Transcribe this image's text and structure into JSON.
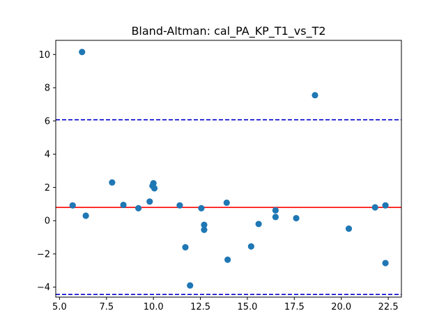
{
  "chart_data": {
    "type": "scatter",
    "title": "Bland-Altman: cal_PA_KP_T1_vs_T2",
    "xlabel": "",
    "ylabel": "",
    "xlim": [
      4.8,
      23.2
    ],
    "ylim": [
      -4.6,
      10.85
    ],
    "x_ticks": [
      5.0,
      7.5,
      10.0,
      12.5,
      15.0,
      17.5,
      20.0,
      22.5
    ],
    "x_tick_labels": [
      "5.0",
      "7.5",
      "10.0",
      "12.5",
      "15.0",
      "17.5",
      "20.0",
      "22.5"
    ],
    "y_ticks": [
      -4,
      -2,
      0,
      2,
      4,
      6,
      8,
      10
    ],
    "y_tick_labels": [
      "−4",
      "−2",
      "0",
      "2",
      "4",
      "6",
      "8",
      "10"
    ],
    "grid": false,
    "points": [
      {
        "x": 5.7,
        "y": 0.92
      },
      {
        "x": 6.2,
        "y": 10.15
      },
      {
        "x": 6.4,
        "y": 0.3
      },
      {
        "x": 7.8,
        "y": 2.3
      },
      {
        "x": 8.4,
        "y": 0.95
      },
      {
        "x": 9.2,
        "y": 0.75
      },
      {
        "x": 9.8,
        "y": 1.15
      },
      {
        "x": 9.95,
        "y": 2.1
      },
      {
        "x": 10.0,
        "y": 2.25
      },
      {
        "x": 10.05,
        "y": 1.95
      },
      {
        "x": 11.4,
        "y": 0.92
      },
      {
        "x": 11.7,
        "y": -1.6
      },
      {
        "x": 11.95,
        "y": -3.9
      },
      {
        "x": 12.55,
        "y": 0.75
      },
      {
        "x": 12.7,
        "y": -0.25
      },
      {
        "x": 12.7,
        "y": -0.55
      },
      {
        "x": 13.9,
        "y": 1.08
      },
      {
        "x": 13.95,
        "y": -2.35
      },
      {
        "x": 15.2,
        "y": -1.55
      },
      {
        "x": 15.6,
        "y": -0.2
      },
      {
        "x": 16.5,
        "y": 0.62
      },
      {
        "x": 16.5,
        "y": 0.22
      },
      {
        "x": 17.6,
        "y": 0.15
      },
      {
        "x": 18.6,
        "y": 7.55
      },
      {
        "x": 20.4,
        "y": -0.48
      },
      {
        "x": 21.8,
        "y": 0.8
      },
      {
        "x": 22.35,
        "y": 0.92
      },
      {
        "x": 22.35,
        "y": -2.55
      }
    ],
    "reference_lines": [
      {
        "kind": "mean",
        "y": 0.8,
        "color": "#ff0000",
        "style": "solid"
      },
      {
        "kind": "upper-limit",
        "y": 6.07,
        "color": "#0000cc",
        "style": "dashed"
      },
      {
        "kind": "lower-limit",
        "y": -4.44,
        "color": "#0000cc",
        "style": "dashed"
      }
    ],
    "point_color": "#1f77b4"
  }
}
